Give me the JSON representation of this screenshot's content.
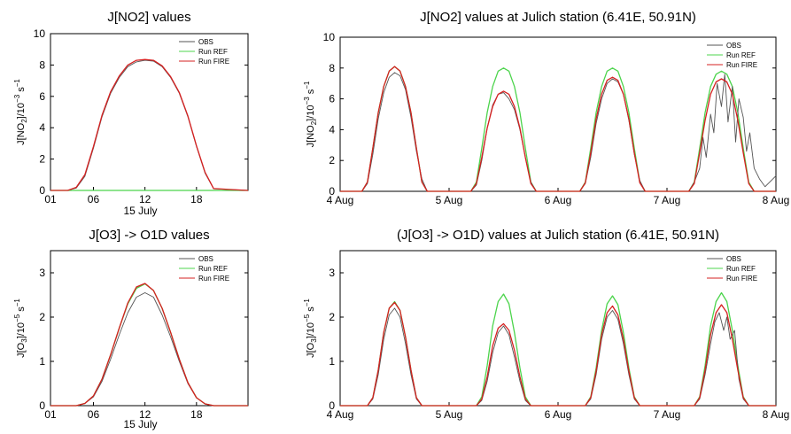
{
  "colors": {
    "obs": "#555555",
    "ref": "#4cd44c",
    "fire": "#d62020"
  },
  "chart_data": [
    {
      "type": "line",
      "title": "J[NO2] values",
      "ylabel": "J[NO2]/10^-3 s^-1",
      "xlabel": "15 July",
      "ylim": [
        0,
        10
      ],
      "yticks": [
        0,
        2,
        4,
        6,
        8,
        10
      ],
      "xlim": [
        1,
        24
      ],
      "xticks": [
        1,
        6,
        12,
        18
      ],
      "xtick_labels": [
        "01",
        "06",
        "12",
        "18"
      ],
      "legend": {
        "position": "top-right",
        "entries": [
          "OBS",
          "Run REF",
          "Run FIRE"
        ]
      },
      "series": [
        {
          "name": "OBS",
          "color_key": "obs",
          "x": [
            1,
            3,
            4,
            5,
            6,
            7,
            8,
            9,
            10,
            11,
            12,
            13,
            14,
            15,
            16,
            17,
            18,
            19,
            20,
            24
          ],
          "y": [
            0,
            0,
            0.15,
            0.9,
            2.7,
            4.7,
            6.2,
            7.2,
            7.9,
            8.2,
            8.3,
            8.25,
            7.9,
            7.2,
            6.2,
            4.7,
            2.8,
            1.1,
            0.1,
            0
          ]
        },
        {
          "name": "Run REF",
          "color_key": "ref",
          "x": [
            1,
            24
          ],
          "y": [
            0,
            0
          ]
        },
        {
          "name": "Run FIRE",
          "color_key": "fire",
          "x": [
            1,
            3,
            4,
            5,
            6,
            7,
            8,
            9,
            10,
            11,
            12,
            13,
            14,
            15,
            16,
            17,
            18,
            19,
            20,
            24
          ],
          "y": [
            0,
            0,
            0.2,
            1.0,
            2.8,
            4.8,
            6.3,
            7.3,
            8.0,
            8.3,
            8.35,
            8.3,
            7.95,
            7.25,
            6.25,
            4.75,
            2.85,
            1.15,
            0.12,
            0
          ]
        }
      ]
    },
    {
      "type": "line",
      "title": "J[NO2] values at Julich station (6.41E, 50.91N)",
      "ylabel": "J[NO2]/10^-3 s^-1",
      "ylim": [
        0,
        10
      ],
      "yticks": [
        0,
        2,
        4,
        6,
        8,
        10
      ],
      "xlim": [
        4,
        8
      ],
      "xticks": [
        4,
        5,
        6,
        7,
        8
      ],
      "xtick_labels": [
        "4 Aug",
        "5 Aug",
        "6 Aug",
        "7 Aug",
        "8 Aug"
      ],
      "legend": {
        "position": "top-right",
        "entries": [
          "OBS",
          "Run REF",
          "Run FIRE"
        ]
      },
      "series": [
        {
          "name": "OBS",
          "color_key": "obs",
          "x": [
            4.0,
            4.2,
            4.25,
            4.3,
            4.35,
            4.4,
            4.45,
            4.5,
            4.55,
            4.6,
            4.65,
            4.7,
            4.75,
            4.8,
            5.2,
            5.25,
            5.3,
            5.35,
            5.4,
            5.45,
            5.5,
            5.55,
            5.6,
            5.65,
            5.7,
            5.75,
            5.8,
            6.2,
            6.25,
            6.3,
            6.35,
            6.4,
            6.45,
            6.5,
            6.55,
            6.6,
            6.65,
            6.7,
            6.75,
            6.8,
            7.2,
            7.25,
            7.3,
            7.33,
            7.36,
            7.4,
            7.43,
            7.46,
            7.5,
            7.53,
            7.56,
            7.6,
            7.63,
            7.66,
            7.7,
            7.73,
            7.76,
            7.8,
            7.85,
            7.9,
            8.0
          ],
          "y": [
            0,
            0,
            0.5,
            2.4,
            4.7,
            6.4,
            7.4,
            7.7,
            7.5,
            6.6,
            4.8,
            2.6,
            0.8,
            0,
            0,
            0.4,
            2.0,
            4.1,
            5.6,
            6.3,
            6.4,
            6.0,
            5.3,
            4.0,
            2.2,
            0.6,
            0,
            0,
            0.5,
            2.2,
            4.4,
            6.0,
            7.0,
            7.3,
            7.1,
            6.3,
            4.6,
            2.4,
            0.7,
            0,
            0,
            0.6,
            1.5,
            3.5,
            2.2,
            5.0,
            3.8,
            7.0,
            5.5,
            7.6,
            4.5,
            6.8,
            3.2,
            6.0,
            4.8,
            2.6,
            3.8,
            1.5,
            0.8,
            0.3,
            1.0
          ]
        },
        {
          "name": "Run REF",
          "color_key": "ref",
          "x": [
            4.0,
            4.2,
            4.25,
            4.3,
            4.35,
            4.4,
            4.45,
            4.5,
            4.55,
            4.6,
            4.65,
            4.7,
            4.75,
            4.8,
            5.2,
            5.25,
            5.3,
            5.35,
            5.4,
            5.45,
            5.5,
            5.55,
            5.6,
            5.65,
            5.7,
            5.75,
            5.8,
            6.2,
            6.25,
            6.3,
            6.35,
            6.4,
            6.45,
            6.5,
            6.55,
            6.6,
            6.65,
            6.7,
            6.75,
            6.8,
            7.2,
            7.25,
            7.3,
            7.35,
            7.4,
            7.45,
            7.5,
            7.55,
            7.6,
            7.65,
            7.7,
            7.75,
            7.8,
            8.0
          ],
          "y": [
            0,
            0,
            0.6,
            2.8,
            5.1,
            6.8,
            7.8,
            8.1,
            7.8,
            6.8,
            5.1,
            2.8,
            0.6,
            0,
            0,
            0.6,
            2.8,
            5.1,
            6.8,
            7.8,
            8.0,
            7.8,
            6.8,
            5.1,
            2.8,
            0.6,
            0,
            0,
            0.6,
            2.8,
            5.1,
            6.8,
            7.8,
            8.0,
            7.8,
            6.8,
            5.1,
            2.8,
            0.6,
            0,
            0,
            0.6,
            2.8,
            5.1,
            6.8,
            7.6,
            7.8,
            7.6,
            6.8,
            5.1,
            2.8,
            0.6,
            0,
            0
          ]
        },
        {
          "name": "Run FIRE",
          "color_key": "fire",
          "x": [
            4.0,
            4.2,
            4.25,
            4.3,
            4.35,
            4.4,
            4.45,
            4.5,
            4.55,
            4.6,
            4.65,
            4.7,
            4.75,
            4.8,
            5.2,
            5.25,
            5.3,
            5.35,
            5.4,
            5.45,
            5.5,
            5.55,
            5.6,
            5.65,
            5.7,
            5.75,
            5.8,
            6.2,
            6.25,
            6.3,
            6.35,
            6.4,
            6.45,
            6.5,
            6.55,
            6.6,
            6.65,
            6.7,
            6.75,
            6.8,
            7.2,
            7.25,
            7.3,
            7.35,
            7.4,
            7.45,
            7.5,
            7.55,
            7.6,
            7.65,
            7.7,
            7.75,
            7.8,
            8.0
          ],
          "y": [
            0,
            0,
            0.6,
            2.8,
            5.1,
            6.8,
            7.8,
            8.1,
            7.8,
            6.8,
            5.1,
            2.8,
            0.6,
            0,
            0,
            0.5,
            2.2,
            4.1,
            5.5,
            6.3,
            6.5,
            6.3,
            5.5,
            4.1,
            2.2,
            0.5,
            0,
            0,
            0.55,
            2.5,
            4.7,
            6.3,
            7.2,
            7.4,
            7.2,
            6.3,
            4.7,
            2.5,
            0.55,
            0,
            0,
            0.5,
            2.5,
            4.6,
            6.3,
            7.1,
            7.3,
            7.1,
            6.3,
            4.6,
            2.5,
            0.5,
            0,
            0
          ]
        }
      ]
    },
    {
      "type": "line",
      "title": "J[O3] -> O1D values",
      "ylabel": "J[O3]/10^-5 s^-1",
      "xlabel": "15 July",
      "ylim": [
        0,
        3.5
      ],
      "yticks": [
        0,
        1,
        2,
        3
      ],
      "xlim": [
        1,
        24
      ],
      "xticks": [
        1,
        6,
        12,
        18
      ],
      "xtick_labels": [
        "01",
        "06",
        "12",
        "18"
      ],
      "legend": {
        "position": "top-right",
        "entries": [
          "OBS",
          "Run REF",
          "Run FIRE"
        ]
      },
      "series": [
        {
          "name": "OBS",
          "color_key": "obs",
          "x": [
            1,
            4,
            5,
            6,
            7,
            8,
            9,
            10,
            11,
            12,
            13,
            14,
            15,
            16,
            17,
            18,
            19,
            20,
            24
          ],
          "y": [
            0,
            0,
            0.05,
            0.2,
            0.55,
            1.05,
            1.6,
            2.1,
            2.45,
            2.55,
            2.45,
            2.05,
            1.55,
            1.0,
            0.5,
            0.18,
            0.04,
            0,
            0
          ]
        },
        {
          "name": "Run REF",
          "color_key": "ref",
          "x": [
            1,
            4,
            5,
            6,
            7,
            8,
            9,
            10,
            11,
            12,
            13,
            14,
            15,
            16,
            17,
            18,
            19,
            20,
            24
          ],
          "y": [
            0,
            0,
            0.05,
            0.22,
            0.6,
            1.15,
            1.75,
            2.3,
            2.65,
            2.75,
            2.6,
            2.2,
            1.65,
            1.05,
            0.52,
            0.18,
            0.04,
            0,
            0
          ]
        },
        {
          "name": "Run FIRE",
          "color_key": "fire",
          "x": [
            1,
            4,
            5,
            6,
            7,
            8,
            9,
            10,
            11,
            12,
            13,
            14,
            15,
            16,
            17,
            18,
            19,
            20,
            24
          ],
          "y": [
            0,
            0,
            0.05,
            0.22,
            0.6,
            1.15,
            1.75,
            2.32,
            2.68,
            2.76,
            2.6,
            2.2,
            1.65,
            1.05,
            0.52,
            0.18,
            0.04,
            0,
            0
          ]
        }
      ]
    },
    {
      "type": "line",
      "title": "(J[O3] -> O1D) values at Julich station (6.41E, 50.91N)",
      "ylabel": "J[O3]/10^-5 s^-1",
      "ylim": [
        0,
        3.5
      ],
      "yticks": [
        0,
        1,
        2,
        3
      ],
      "xlim": [
        4,
        8
      ],
      "xticks": [
        4,
        5,
        6,
        7,
        8
      ],
      "xtick_labels": [
        "4 Aug",
        "5 Aug",
        "6 Aug",
        "7 Aug",
        "8 Aug"
      ],
      "legend": {
        "position": "top-right",
        "entries": [
          "OBS",
          "Run REF",
          "Run FIRE"
        ]
      },
      "series": [
        {
          "name": "OBS",
          "color_key": "obs",
          "x": [
            4.0,
            4.25,
            4.3,
            4.35,
            4.4,
            4.45,
            4.5,
            4.55,
            4.6,
            4.65,
            4.7,
            4.75,
            5.25,
            5.3,
            5.35,
            5.4,
            5.45,
            5.5,
            5.55,
            5.6,
            5.65,
            5.7,
            5.75,
            6.25,
            6.3,
            6.35,
            6.4,
            6.45,
            6.5,
            6.55,
            6.6,
            6.65,
            6.7,
            6.75,
            7.25,
            7.3,
            7.35,
            7.4,
            7.44,
            7.48,
            7.52,
            7.55,
            7.58,
            7.62,
            7.66,
            7.7,
            7.75,
            8.0
          ],
          "y": [
            0,
            0,
            0.15,
            0.7,
            1.5,
            2.05,
            2.2,
            2.0,
            1.4,
            0.7,
            0.15,
            0,
            0,
            0.12,
            0.55,
            1.2,
            1.65,
            1.8,
            1.6,
            1.1,
            0.55,
            0.12,
            0,
            0,
            0.15,
            0.7,
            1.5,
            2.0,
            2.15,
            1.95,
            1.4,
            0.7,
            0.15,
            0,
            0,
            0.15,
            0.7,
            1.4,
            1.9,
            2.1,
            1.7,
            2.0,
            1.5,
            1.7,
            0.6,
            0.15,
            0,
            0
          ]
        },
        {
          "name": "Run REF",
          "color_key": "ref",
          "x": [
            4.0,
            4.25,
            4.3,
            4.35,
            4.4,
            4.45,
            4.5,
            4.55,
            4.6,
            4.65,
            4.7,
            4.75,
            5.25,
            5.3,
            5.35,
            5.4,
            5.45,
            5.5,
            5.55,
            5.6,
            5.65,
            5.7,
            5.75,
            6.25,
            6.3,
            6.35,
            6.4,
            6.45,
            6.5,
            6.55,
            6.6,
            6.65,
            6.7,
            6.75,
            7.25,
            7.3,
            7.35,
            7.4,
            7.45,
            7.5,
            7.55,
            7.6,
            7.65,
            7.7,
            7.75,
            8.0
          ],
          "y": [
            0,
            0,
            0.18,
            0.8,
            1.65,
            2.2,
            2.35,
            2.15,
            1.55,
            0.8,
            0.18,
            0,
            0,
            0.2,
            0.9,
            1.8,
            2.35,
            2.52,
            2.3,
            1.65,
            0.85,
            0.2,
            0,
            0,
            0.2,
            0.85,
            1.7,
            2.3,
            2.48,
            2.28,
            1.65,
            0.85,
            0.2,
            0,
            0,
            0.2,
            0.9,
            1.8,
            2.35,
            2.55,
            2.35,
            1.7,
            0.9,
            0.2,
            0,
            0
          ]
        },
        {
          "name": "Run FIRE",
          "color_key": "fire",
          "x": [
            4.0,
            4.25,
            4.3,
            4.35,
            4.4,
            4.45,
            4.5,
            4.55,
            4.6,
            4.65,
            4.7,
            4.75,
            5.25,
            5.3,
            5.35,
            5.4,
            5.45,
            5.5,
            5.55,
            5.6,
            5.65,
            5.7,
            5.75,
            6.25,
            6.3,
            6.35,
            6.4,
            6.45,
            6.5,
            6.55,
            6.6,
            6.65,
            6.7,
            6.75,
            7.25,
            7.3,
            7.35,
            7.4,
            7.45,
            7.5,
            7.55,
            7.6,
            7.65,
            7.7,
            7.75,
            8.0
          ],
          "y": [
            0,
            0,
            0.18,
            0.8,
            1.65,
            2.2,
            2.33,
            2.15,
            1.55,
            0.8,
            0.18,
            0,
            0,
            0.15,
            0.65,
            1.35,
            1.75,
            1.85,
            1.7,
            1.25,
            0.65,
            0.15,
            0,
            0,
            0.18,
            0.78,
            1.6,
            2.1,
            2.25,
            2.05,
            1.5,
            0.78,
            0.18,
            0,
            0,
            0.18,
            0.8,
            1.6,
            2.1,
            2.28,
            2.1,
            1.5,
            0.8,
            0.18,
            0,
            0
          ]
        }
      ]
    }
  ]
}
